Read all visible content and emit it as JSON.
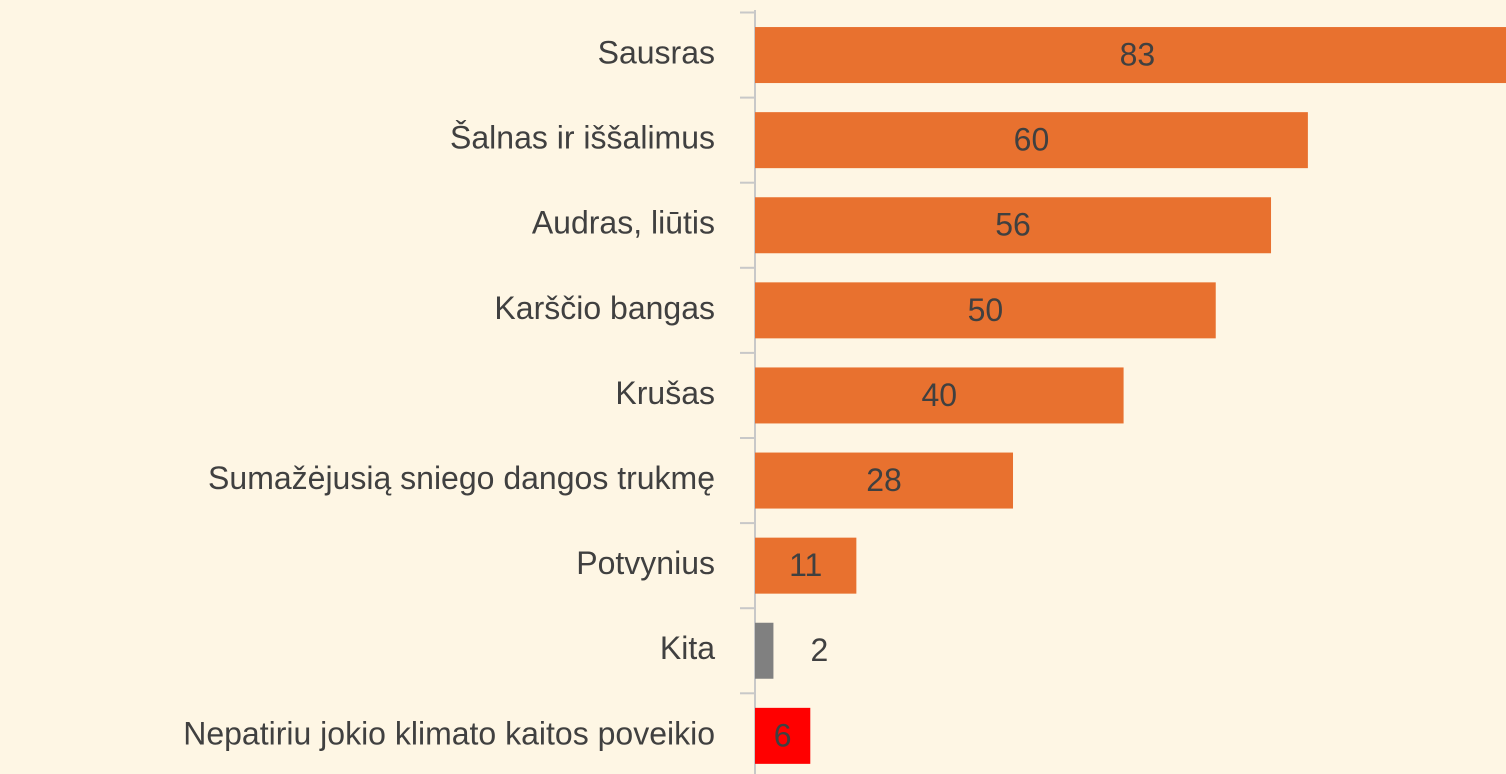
{
  "chart_data": {
    "type": "barh",
    "categories": [
      "Sausras",
      "Šalnas ir iššalimus",
      "Audras, liūtis",
      "Karščio bangas",
      "Krušas",
      "Sumažėjusią sniego dangos trukmę",
      "Potvynius",
      "Kita",
      "Nepatiriu jokio klimato kaitos poveikio"
    ],
    "values": [
      83,
      60,
      56,
      50,
      40,
      28,
      11,
      2,
      6
    ],
    "colors": [
      "#e8712f",
      "#e8712f",
      "#e8712f",
      "#e8712f",
      "#e8712f",
      "#e8712f",
      "#e8712f",
      "#808080",
      "#ff0000"
    ],
    "xlim": [
      0,
      81.5
    ]
  }
}
